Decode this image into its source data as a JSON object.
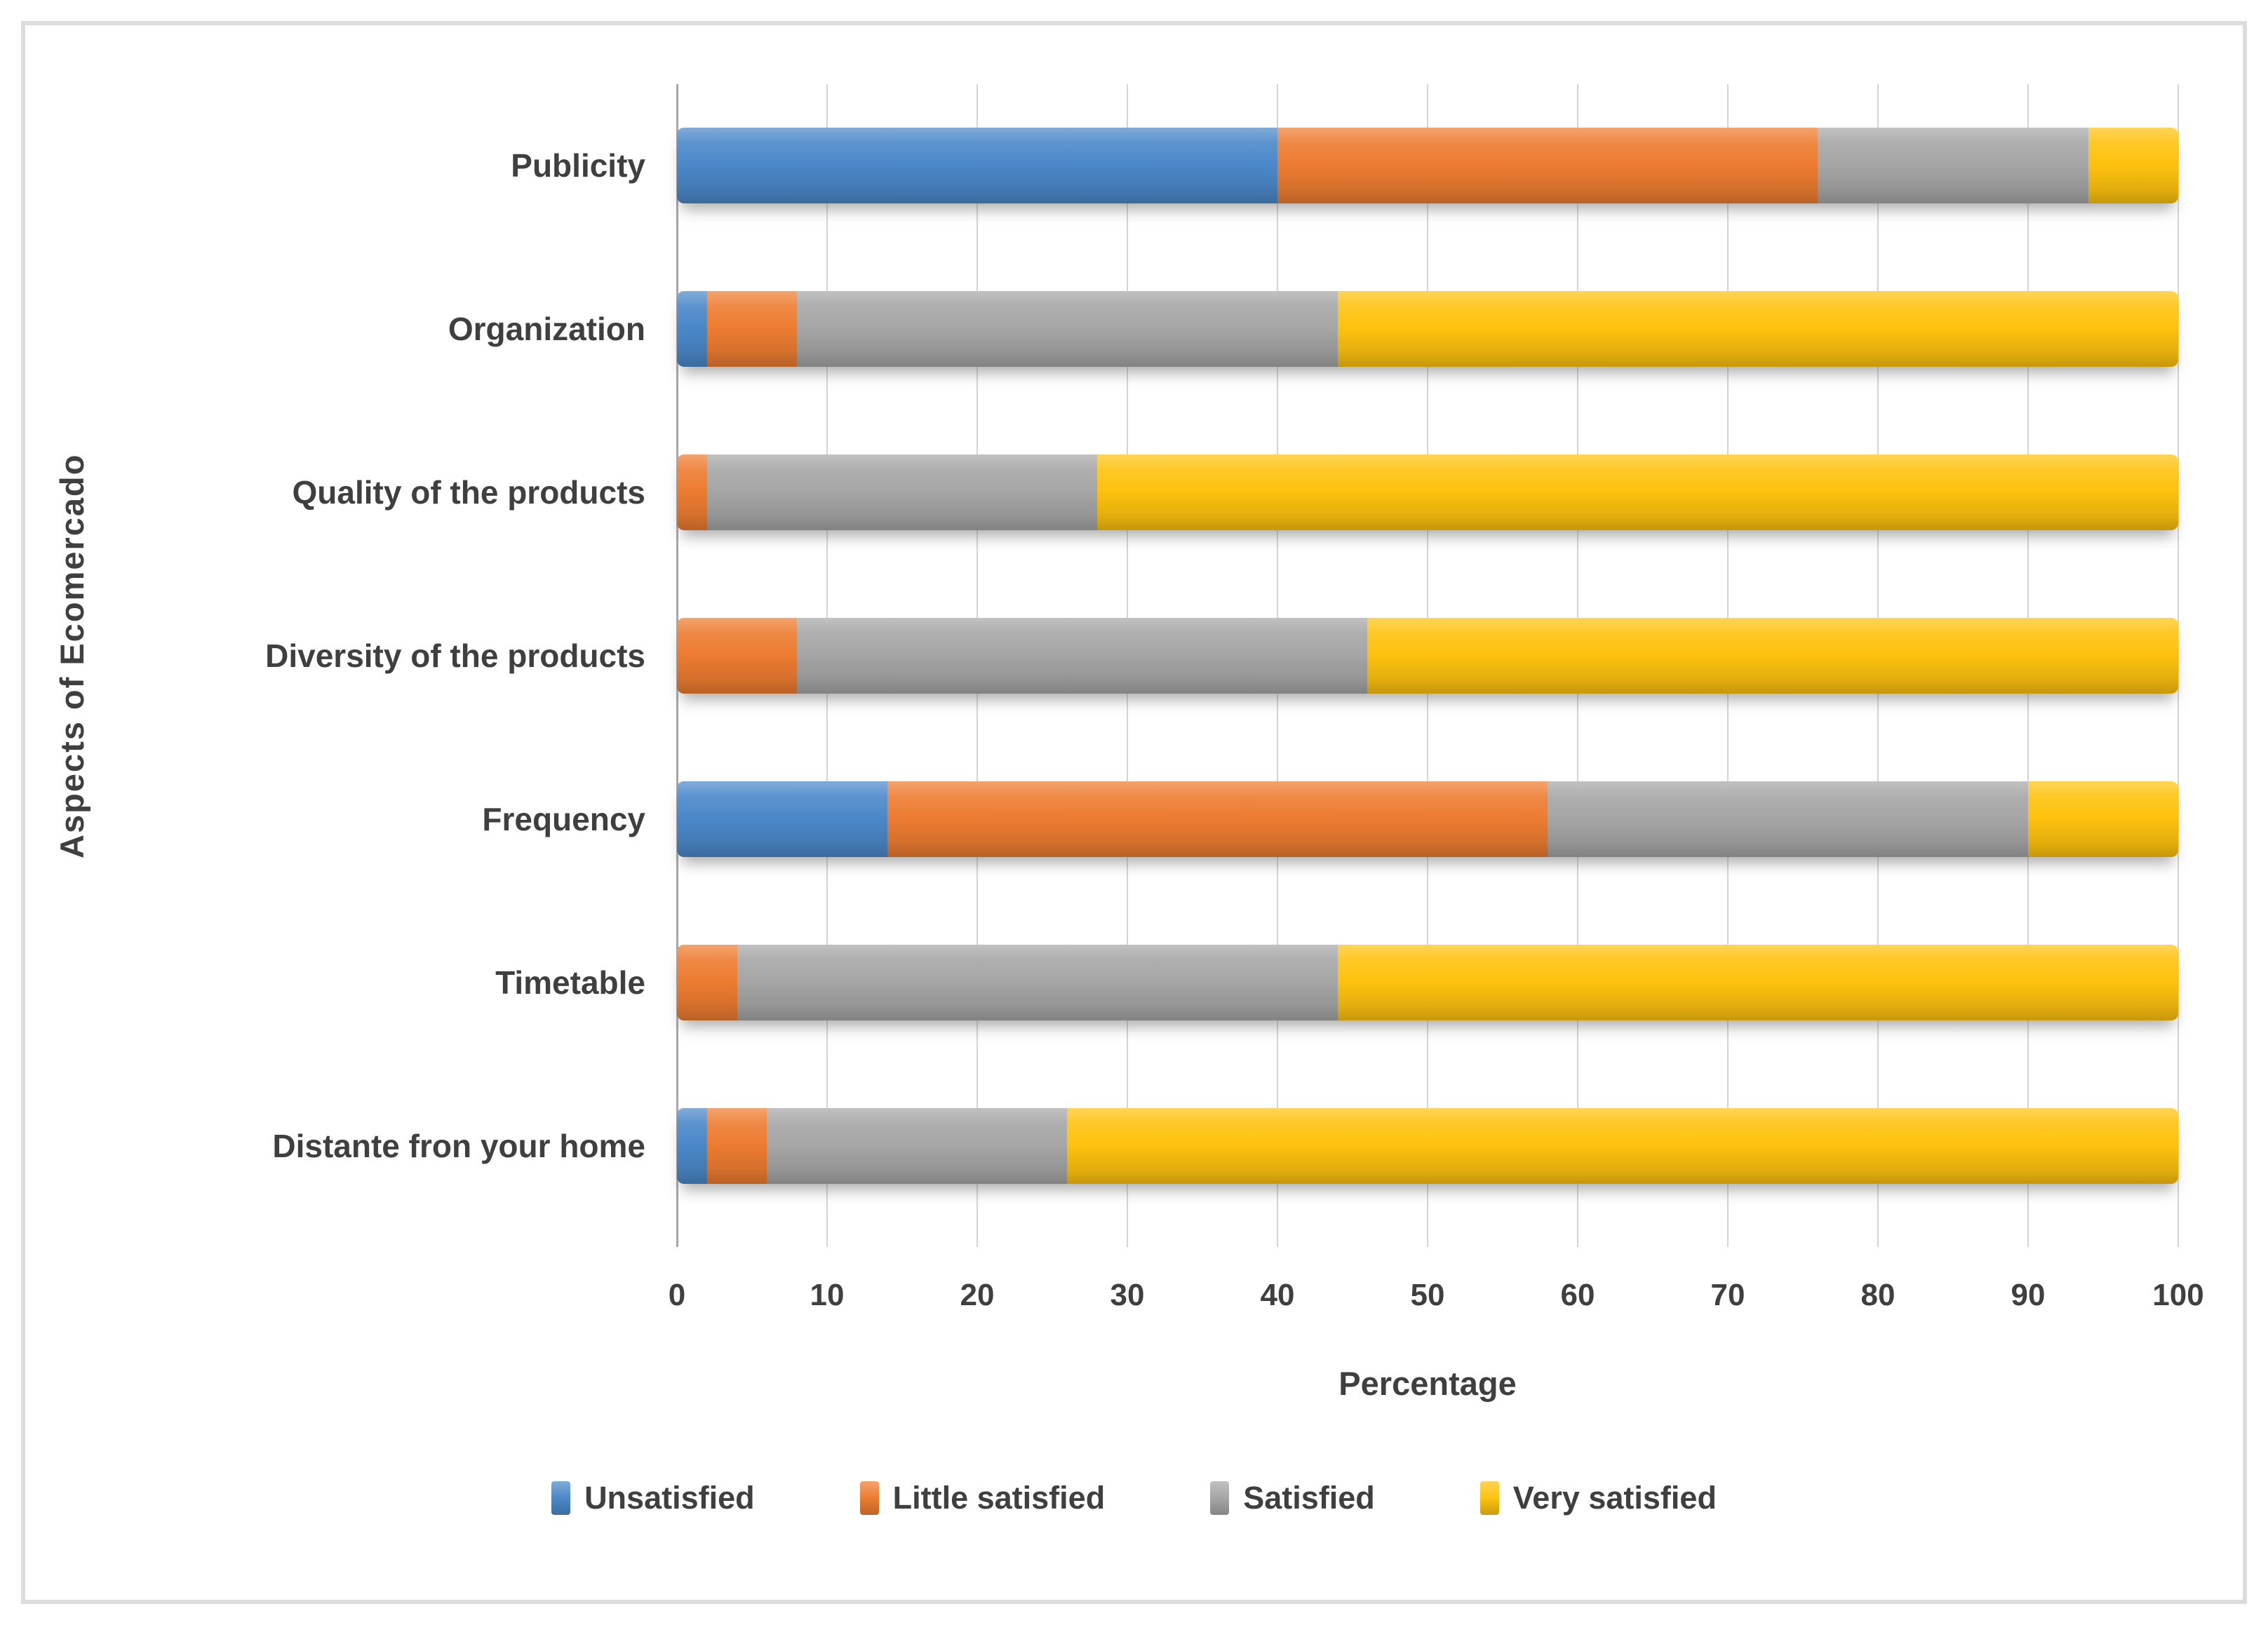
{
  "chart_data": {
    "type": "bar",
    "orientation": "horizontal",
    "stacked": true,
    "title": "",
    "xlabel": "Percentage",
    "ylabel": "Aspects of Ecomercado",
    "xlim": [
      0,
      100
    ],
    "xticks": [
      0,
      10,
      20,
      30,
      40,
      50,
      60,
      70,
      80,
      90,
      100
    ],
    "grid": true,
    "legend_position": "bottom",
    "categories": [
      "Publicity",
      "Organization",
      "Quality of the products",
      "Diversity of the products",
      "Frequency",
      "Timetable",
      "Distante fron your home"
    ],
    "series": [
      {
        "name": "Unsatisfied",
        "color": "#4b88c9",
        "values": [
          40,
          2,
          0,
          0,
          14,
          0,
          2
        ]
      },
      {
        "name": "Little satisfied",
        "color": "#ed7c31",
        "values": [
          36,
          6,
          2,
          8,
          44,
          4,
          4
        ]
      },
      {
        "name": "Satisfied",
        "color": "#a6a6a6",
        "values": [
          18,
          36,
          26,
          38,
          32,
          40,
          20
        ]
      },
      {
        "name": "Very satisfied",
        "color": "#fec20e",
        "values": [
          6,
          56,
          72,
          54,
          10,
          56,
          74
        ]
      }
    ]
  }
}
